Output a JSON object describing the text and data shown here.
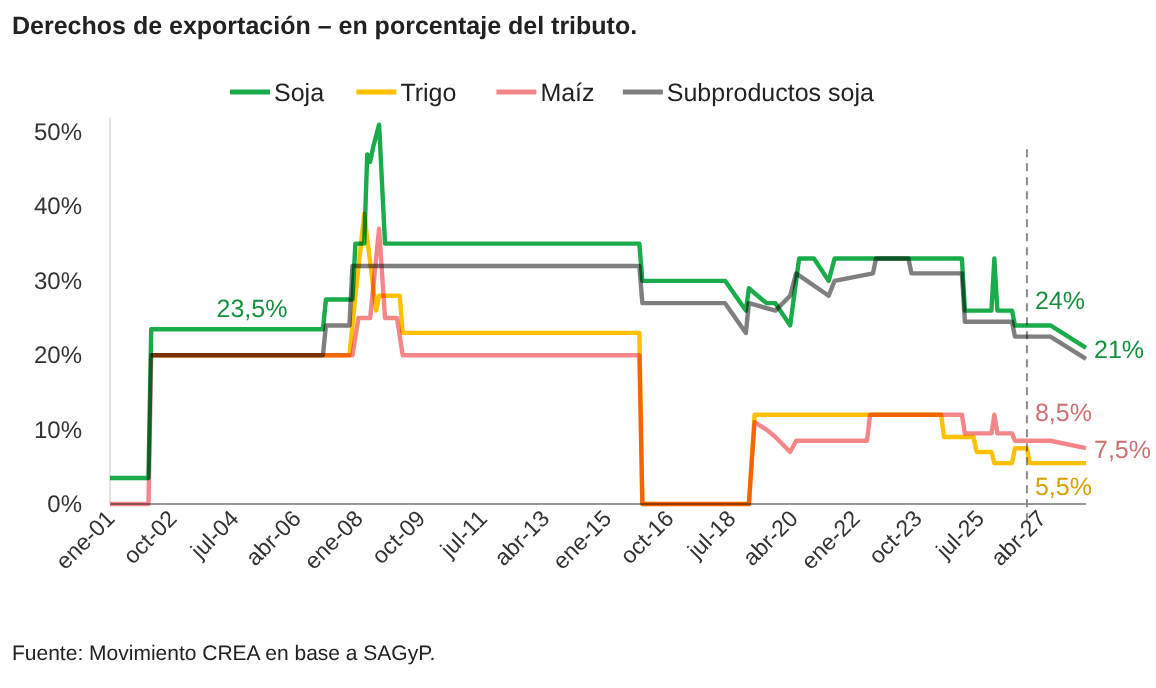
{
  "chart_data": {
    "type": "line",
    "title": "Derechos de exportación – en porcentaje del tributo.",
    "xlim": [
      "2001-01",
      "2028-07"
    ],
    "xticks": [
      {
        "value": "2001-01",
        "label": "ene-01"
      },
      {
        "value": "2002-10",
        "label": "oct-02"
      },
      {
        "value": "2004-07",
        "label": "jul-04"
      },
      {
        "value": "2006-04",
        "label": "abr-06"
      },
      {
        "value": "2008-01",
        "label": "ene-08"
      },
      {
        "value": "2009-10",
        "label": "oct-09"
      },
      {
        "value": "2011-07",
        "label": "jul-11"
      },
      {
        "value": "2013-04",
        "label": "abr-13"
      },
      {
        "value": "2015-01",
        "label": "ene-15"
      },
      {
        "value": "2016-10",
        "label": "oct-16"
      },
      {
        "value": "2018-07",
        "label": "jul-18"
      },
      {
        "value": "2020-04",
        "label": "abr-20"
      },
      {
        "value": "2022-01",
        "label": "ene-22"
      },
      {
        "value": "2023-10",
        "label": "oct-23"
      },
      {
        "value": "2025-07",
        "label": "jul-25"
      },
      {
        "value": "2027-04",
        "label": "abr-27"
      }
    ],
    "ylim": [
      0,
      52
    ],
    "yticks": [
      {
        "value": 0,
        "label": "0%"
      },
      {
        "value": 10,
        "label": "10%"
      },
      {
        "value": 20,
        "label": "20%"
      },
      {
        "value": 30,
        "label": "30%"
      },
      {
        "value": 40,
        "label": "40%"
      },
      {
        "value": 50,
        "label": "50%"
      }
    ],
    "grid": false,
    "legend": "top",
    "line_style": "solid",
    "series": [
      {
        "name": "Soja",
        "color": "#1aab4b",
        "x": [
          "2001-01",
          "2002-02",
          "2002-03",
          "2007-01",
          "2007-02",
          "2007-11",
          "2007-12",
          "2008-03",
          "2008-04",
          "2008-05",
          "2008-06",
          "2008-08",
          "2008-10",
          "2015-12",
          "2016-01",
          "2018-05",
          "2018-12",
          "2019-01",
          "2019-04",
          "2019-07",
          "2019-10",
          "2020-03",
          "2020-05",
          "2020-06",
          "2020-11",
          "2021-04",
          "2021-06",
          "2025-01",
          "2025-02",
          "2025-11",
          "2025-12",
          "2026-01",
          "2026-06",
          "2026-07",
          "2027-07",
          "2028-07"
        ],
        "values": [
          3.5,
          3.5,
          23.5,
          23.5,
          27.5,
          27.5,
          35,
          35,
          47,
          46,
          48,
          51,
          35,
          35,
          30,
          30,
          26,
          29,
          28,
          27,
          27,
          24,
          30,
          33,
          33,
          30,
          33,
          33,
          26,
          26,
          33,
          26,
          26,
          24,
          24,
          21
        ]
      },
      {
        "name": "Trigo",
        "color": "#ffc000",
        "x": [
          "2002-03",
          "2007-10",
          "2007-12",
          "2008-03",
          "2008-07",
          "2008-08",
          "2009-03",
          "2009-04",
          "2015-12",
          "2016-01",
          "2019-01",
          "2019-03",
          "2024-06",
          "2024-07",
          "2025-05",
          "2025-06",
          "2025-11",
          "2025-12",
          "2026-06",
          "2026-07",
          "2026-11",
          "2026-12",
          "2028-07"
        ],
        "values": [
          20,
          20,
          28,
          39,
          26,
          28,
          28,
          23,
          23,
          0,
          0,
          12,
          12,
          9,
          9,
          7,
          7,
          5.5,
          5.5,
          7.5,
          7.5,
          5.5,
          5.5
        ]
      },
      {
        "name": "Maíz",
        "color": "#f4868a",
        "x": [
          "2001-01",
          "2002-02",
          "2002-03",
          "2007-11",
          "2008-01",
          "2008-05",
          "2008-08",
          "2008-10",
          "2009-02",
          "2009-04",
          "2015-12",
          "2016-01",
          "2019-01",
          "2019-03",
          "2019-07",
          "2019-10",
          "2020-03",
          "2020-05",
          "2022-05",
          "2022-06",
          "2025-01",
          "2025-02",
          "2025-11",
          "2025-12",
          "2026-01",
          "2026-06",
          "2026-07",
          "2027-07",
          "2028-07"
        ],
        "values": [
          0,
          0,
          20,
          20,
          25,
          25,
          37,
          25,
          25,
          20,
          20,
          0,
          0,
          11,
          10,
          9,
          7,
          8.5,
          8.5,
          12,
          12,
          9.5,
          9.5,
          12,
          9.5,
          9.5,
          8.5,
          8.5,
          7.5
        ]
      },
      {
        "name": "Subproductos soja",
        "color": "#7f7f7f",
        "x": [
          "2002-03",
          "2007-01",
          "2007-02",
          "2007-10",
          "2007-11",
          "2015-12",
          "2016-01",
          "2018-05",
          "2018-12",
          "2019-01",
          "2019-10",
          "2020-03",
          "2020-05",
          "2021-04",
          "2021-06",
          "2022-07",
          "2022-08",
          "2023-07",
          "2023-08",
          "2025-01",
          "2025-02",
          "2026-06",
          "2026-07",
          "2027-07",
          "2028-07"
        ],
        "values": [
          20,
          20,
          24,
          24,
          32,
          32,
          27,
          27,
          23,
          27,
          26,
          28,
          31,
          28,
          30,
          31,
          33,
          33,
          31,
          31,
          24.5,
          24.5,
          22.5,
          22.5,
          19.5
        ]
      }
    ],
    "ref_lines": [
      {
        "axis": "x",
        "value": "2026-11",
        "color": "#8c8c8c",
        "line_style": "dashed"
      }
    ],
    "annotations": [
      {
        "text": "23,5%",
        "x": "2005-01",
        "y": 23.5
      },
      {
        "text": "24%",
        "x": "2026-07",
        "y": 24
      },
      {
        "text": "21%",
        "x": "2028-07",
        "y": 21
      },
      {
        "text": "8,5%",
        "x": "2026-07",
        "y": 8.5
      },
      {
        "text": "7,5%",
        "x": "2028-07",
        "y": 7.5
      },
      {
        "text": "5,5%",
        "x": "2026-07",
        "y": 5.5
      },
      "Fuente: Movimiento CREA en base a SAGyP."
    ]
  }
}
